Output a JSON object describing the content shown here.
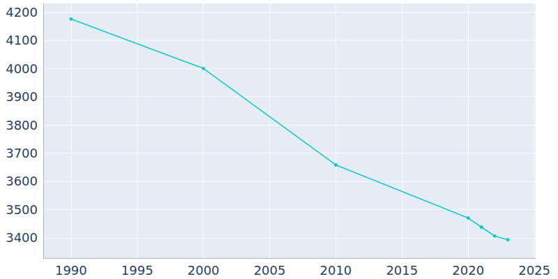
{
  "chart_data": {
    "type": "line",
    "color": "#17cbc4",
    "marker": "circle",
    "grid": true,
    "x": [
      1990,
      2000,
      2010,
      2020,
      2021,
      2022,
      2023
    ],
    "values": [
      4175,
      4000,
      3658,
      3470,
      3438,
      3406,
      3393
    ],
    "xlim": [
      1987.9,
      2025.1
    ],
    "xticks": [
      1990,
      1995,
      2000,
      2005,
      2010,
      2015,
      2020,
      2025
    ],
    "ylim": [
      3328,
      4230
    ],
    "yticks": [
      3400,
      3500,
      3600,
      3700,
      3800,
      3900,
      4000,
      4100,
      4200
    ]
  }
}
